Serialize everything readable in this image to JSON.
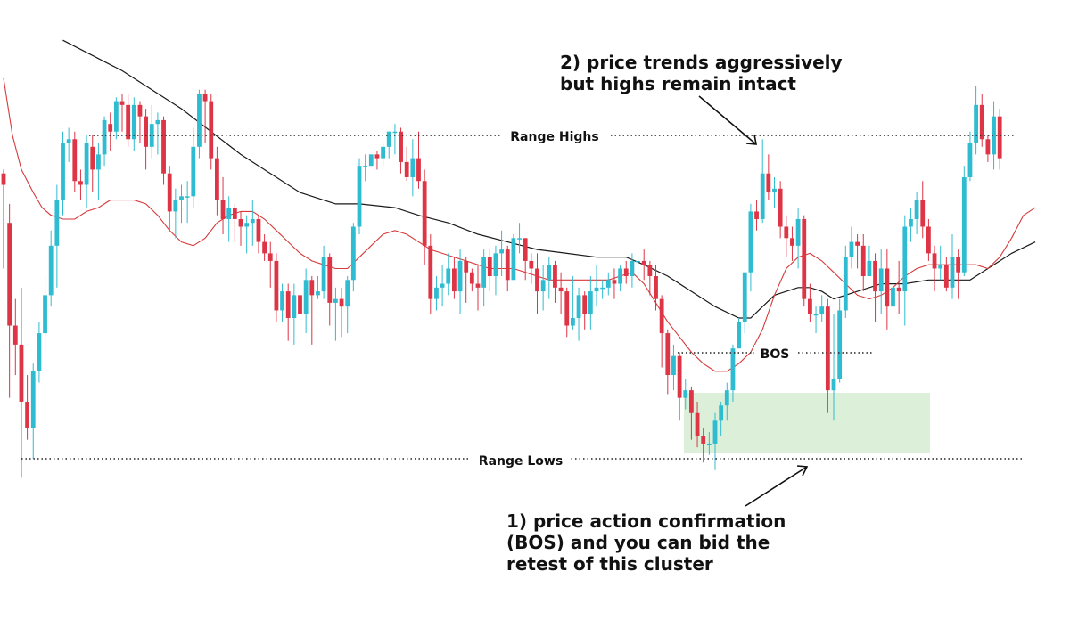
{
  "chart_data": {
    "type": "candlestick",
    "colors": {
      "up": "#2FBCD0",
      "down": "#DD3545",
      "ma_fast": "#D63A3A",
      "ma_slow": "#1A1A1A",
      "zone": "#DCEFD8",
      "grid": "none"
    },
    "ylim": [
      0,
      100
    ],
    "candles": [
      [
        75,
        72,
        76,
        50
      ],
      [
        62,
        35,
        67,
        16
      ],
      [
        35,
        30,
        42,
        22
      ],
      [
        30,
        15,
        45,
        -5
      ],
      [
        15,
        8,
        22,
        5
      ],
      [
        8,
        23,
        25,
        0
      ],
      [
        23,
        33,
        36,
        20
      ],
      [
        33,
        43,
        48,
        28
      ],
      [
        43,
        56,
        60,
        40
      ],
      [
        56,
        68,
        72,
        45
      ],
      [
        68,
        83,
        86,
        64
      ],
      [
        83,
        84,
        87,
        78
      ],
      [
        84,
        73,
        86,
        70
      ],
      [
        73,
        72,
        76,
        68
      ],
      [
        72,
        83,
        85,
        66
      ],
      [
        82,
        76,
        85,
        70
      ],
      [
        76,
        80,
        83,
        68
      ],
      [
        80,
        89,
        90,
        77
      ],
      [
        88,
        86,
        91,
        81
      ],
      [
        86,
        94,
        95,
        84
      ],
      [
        94,
        93,
        96,
        86
      ],
      [
        93,
        84,
        96,
        82
      ],
      [
        84,
        93,
        95,
        81
      ],
      [
        93,
        90,
        94,
        83
      ],
      [
        90,
        82,
        92,
        76
      ],
      [
        82,
        88,
        93,
        79
      ],
      [
        88,
        89,
        91,
        80
      ],
      [
        89,
        75,
        90,
        72
      ],
      [
        75,
        65,
        77,
        60
      ],
      [
        65,
        68,
        71,
        58
      ],
      [
        68,
        69,
        72,
        62
      ],
      [
        69,
        69,
        73,
        62
      ],
      [
        69,
        82,
        87,
        66
      ],
      [
        82,
        96,
        97,
        79
      ],
      [
        96,
        94,
        97,
        83
      ],
      [
        94,
        79,
        96,
        76
      ],
      [
        79,
        68,
        82,
        64
      ],
      [
        68,
        63,
        74,
        59
      ],
      [
        63,
        66,
        69,
        57
      ],
      [
        66,
        63,
        67,
        57
      ],
      [
        63,
        61,
        65,
        56
      ],
      [
        61,
        62,
        64,
        54
      ],
      [
        62,
        63,
        68,
        56
      ],
      [
        63,
        57,
        64,
        54
      ],
      [
        57,
        54,
        59,
        52
      ],
      [
        54,
        52,
        57,
        45
      ],
      [
        52,
        39,
        54,
        36
      ],
      [
        39,
        44,
        46,
        36
      ],
      [
        44,
        37,
        46,
        31
      ],
      [
        37,
        43,
        46,
        30
      ],
      [
        43,
        38,
        46,
        30
      ],
      [
        38,
        47,
        50,
        33
      ],
      [
        47,
        43,
        48,
        30
      ],
      [
        43,
        44,
        48,
        42
      ],
      [
        44,
        53,
        56,
        42
      ],
      [
        53,
        41,
        54,
        35
      ],
      [
        41,
        42,
        45,
        31
      ],
      [
        42,
        40,
        45,
        32
      ],
      [
        40,
        47,
        48,
        33
      ],
      [
        47,
        61,
        62,
        44
      ],
      [
        61,
        77,
        79,
        59
      ],
      [
        77,
        77,
        80,
        73
      ],
      [
        77,
        80,
        80,
        77
      ],
      [
        80,
        79,
        81,
        76
      ],
      [
        79,
        82,
        83,
        77
      ],
      [
        82,
        86,
        86,
        79
      ],
      [
        86,
        86,
        88,
        80
      ],
      [
        86,
        78,
        87,
        75
      ],
      [
        78,
        74,
        82,
        73
      ],
      [
        74,
        79,
        84,
        69
      ],
      [
        79,
        73,
        86,
        71
      ],
      [
        73,
        56,
        76,
        51
      ],
      [
        56,
        42,
        59,
        38
      ],
      [
        42,
        45,
        48,
        39
      ],
      [
        45,
        46,
        51,
        40
      ],
      [
        46,
        50,
        54,
        43
      ],
      [
        50,
        44,
        53,
        42
      ],
      [
        44,
        52,
        55,
        38
      ],
      [
        52,
        49,
        53,
        41
      ],
      [
        49,
        46,
        50,
        44
      ],
      [
        46,
        45,
        51,
        39
      ],
      [
        45,
        53,
        55,
        40
      ],
      [
        53,
        48,
        55,
        44
      ],
      [
        48,
        54,
        56,
        43
      ],
      [
        54,
        55,
        60,
        48
      ],
      [
        55,
        47,
        56,
        44
      ],
      [
        47,
        58,
        59,
        52
      ],
      [
        58,
        58,
        62,
        54
      ],
      [
        58,
        52,
        58,
        47
      ],
      [
        52,
        50,
        54,
        46
      ],
      [
        50,
        44,
        54,
        38
      ],
      [
        44,
        47,
        51,
        39
      ],
      [
        47,
        51,
        53,
        42
      ],
      [
        51,
        45,
        52,
        41
      ],
      [
        45,
        44,
        49,
        38
      ],
      [
        44,
        35,
        45,
        32
      ],
      [
        35,
        37,
        48,
        34
      ],
      [
        37,
        43,
        45,
        31
      ],
      [
        43,
        38,
        44,
        34
      ],
      [
        38,
        44,
        48,
        34
      ],
      [
        44,
        45,
        51,
        40
      ],
      [
        45,
        45,
        47,
        42
      ],
      [
        45,
        47,
        49,
        43
      ],
      [
        47,
        46,
        50,
        42
      ],
      [
        46,
        50,
        51,
        44
      ],
      [
        50,
        48,
        52,
        46
      ],
      [
        48,
        52,
        54,
        45
      ],
      [
        52,
        52,
        53,
        48
      ],
      [
        52,
        51,
        55,
        47
      ],
      [
        51,
        48,
        52,
        43
      ],
      [
        48,
        42,
        51,
        39
      ],
      [
        42,
        33,
        43,
        24
      ],
      [
        33,
        22,
        34,
        17
      ],
      [
        22,
        27,
        30,
        18
      ],
      [
        27,
        16,
        28,
        10
      ],
      [
        16,
        18,
        21,
        13
      ],
      [
        18,
        12,
        19,
        5
      ],
      [
        12,
        6,
        15,
        3
      ],
      [
        6,
        4,
        8,
        -1
      ],
      [
        4,
        4,
        7,
        1
      ],
      [
        4,
        10,
        12,
        -3
      ],
      [
        10,
        14,
        15,
        6
      ],
      [
        14,
        18,
        20,
        10
      ],
      [
        18,
        29,
        30,
        15
      ],
      [
        29,
        36,
        37,
        29
      ],
      [
        36,
        49,
        49,
        33
      ],
      [
        49,
        65,
        67,
        44
      ],
      [
        65,
        63,
        68,
        60
      ],
      [
        63,
        75,
        84,
        62
      ],
      [
        75,
        70,
        80,
        68
      ],
      [
        70,
        71,
        74,
        66
      ],
      [
        71,
        61,
        73,
        58
      ],
      [
        61,
        58,
        64,
        53
      ],
      [
        58,
        56,
        61,
        52
      ],
      [
        56,
        63,
        66,
        50
      ],
      [
        63,
        42,
        64,
        40
      ],
      [
        42,
        38,
        46,
        36
      ],
      [
        38,
        38,
        40,
        33
      ],
      [
        38,
        40,
        43,
        36
      ],
      [
        40,
        18,
        42,
        12
      ],
      [
        18,
        21,
        38,
        10
      ],
      [
        21,
        39,
        42,
        20
      ],
      [
        39,
        53,
        56,
        37
      ],
      [
        53,
        57,
        61,
        50
      ],
      [
        57,
        56,
        59,
        50
      ],
      [
        56,
        48,
        59,
        44
      ],
      [
        48,
        52,
        56,
        48
      ],
      [
        52,
        44,
        54,
        36
      ],
      [
        44,
        50,
        55,
        38
      ],
      [
        50,
        40,
        55,
        34
      ],
      [
        40,
        45,
        48,
        34
      ],
      [
        45,
        44,
        52,
        38
      ],
      [
        44,
        61,
        64,
        35
      ],
      [
        61,
        63,
        66,
        57
      ],
      [
        63,
        68,
        70,
        59
      ],
      [
        68,
        61,
        73,
        58
      ],
      [
        61,
        54,
        63,
        52
      ],
      [
        54,
        50,
        56,
        44
      ],
      [
        50,
        51,
        56,
        47
      ],
      [
        51,
        45,
        53,
        44
      ],
      [
        45,
        53,
        59,
        42
      ],
      [
        53,
        49,
        55,
        42
      ],
      [
        49,
        74,
        77,
        48
      ],
      [
        74,
        83,
        86,
        73
      ],
      [
        83,
        93,
        98,
        80
      ],
      [
        93,
        84,
        96,
        82
      ],
      [
        84,
        80,
        85,
        78
      ],
      [
        80,
        90,
        94,
        76
      ],
      [
        90,
        79,
        92,
        76
      ]
    ],
    "ma_fast": [
      [
        0,
        100
      ],
      [
        0.5,
        95
      ],
      [
        1.5,
        85
      ],
      [
        3,
        76
      ],
      [
        5,
        70
      ],
      [
        6.5,
        66
      ],
      [
        8,
        64
      ],
      [
        10,
        63
      ],
      [
        12,
        63
      ],
      [
        14,
        65
      ],
      [
        16,
        66
      ],
      [
        18,
        68
      ],
      [
        20,
        68
      ],
      [
        22,
        68
      ],
      [
        24,
        67
      ],
      [
        26,
        64
      ],
      [
        28,
        60
      ],
      [
        30,
        57
      ],
      [
        32,
        56
      ],
      [
        34,
        58
      ],
      [
        36,
        62
      ],
      [
        38,
        64
      ],
      [
        40,
        65
      ],
      [
        42,
        65
      ],
      [
        44,
        63
      ],
      [
        46,
        60
      ],
      [
        48,
        57
      ],
      [
        50,
        54
      ],
      [
        52,
        52
      ],
      [
        54,
        51
      ],
      [
        56,
        50
      ],
      [
        58,
        50
      ],
      [
        60,
        53
      ],
      [
        62,
        56
      ],
      [
        64,
        59
      ],
      [
        66,
        60
      ],
      [
        68,
        59
      ],
      [
        70,
        57
      ],
      [
        72,
        55
      ],
      [
        74,
        54
      ],
      [
        76,
        53
      ],
      [
        78,
        52
      ],
      [
        80,
        51
      ],
      [
        82,
        50
      ],
      [
        84,
        50
      ],
      [
        86,
        50
      ],
      [
        88,
        49
      ],
      [
        90,
        48
      ],
      [
        92,
        47
      ],
      [
        94,
        47
      ],
      [
        96,
        47
      ],
      [
        98,
        47
      ],
      [
        100,
        47
      ],
      [
        102,
        47
      ],
      [
        104,
        48
      ],
      [
        106,
        49
      ],
      [
        108,
        46
      ],
      [
        110,
        41
      ],
      [
        112,
        36
      ],
      [
        114,
        32
      ],
      [
        116,
        28
      ],
      [
        118,
        25
      ],
      [
        120,
        23
      ],
      [
        122,
        23
      ],
      [
        124,
        25
      ],
      [
        126,
        28
      ],
      [
        128,
        34
      ],
      [
        130,
        43
      ],
      [
        132,
        50
      ],
      [
        134,
        53
      ],
      [
        136,
        54
      ],
      [
        138,
        52
      ],
      [
        140,
        49
      ],
      [
        142,
        46
      ],
      [
        144,
        43
      ],
      [
        146,
        42
      ],
      [
        148,
        43
      ],
      [
        150,
        45
      ],
      [
        152,
        48
      ],
      [
        154,
        50
      ],
      [
        156,
        51
      ],
      [
        158,
        51
      ],
      [
        160,
        51
      ],
      [
        162,
        51
      ],
      [
        164,
        51
      ],
      [
        166,
        50
      ],
      [
        168,
        53
      ],
      [
        170,
        58
      ],
      [
        172,
        64
      ],
      [
        174,
        66
      ]
    ],
    "ma_slow": [
      [
        10,
        110
      ],
      [
        20,
        102
      ],
      [
        30,
        92
      ],
      [
        40,
        80
      ],
      [
        50,
        70
      ],
      [
        56,
        67
      ],
      [
        60,
        67
      ],
      [
        66,
        66
      ],
      [
        70,
        64
      ],
      [
        75,
        62
      ],
      [
        80,
        59
      ],
      [
        85,
        57
      ],
      [
        90,
        55
      ],
      [
        95,
        54
      ],
      [
        100,
        53
      ],
      [
        105,
        53
      ],
      [
        108,
        51
      ],
      [
        112,
        48
      ],
      [
        116,
        44
      ],
      [
        120,
        40
      ],
      [
        124,
        37
      ],
      [
        126,
        37
      ],
      [
        128,
        40
      ],
      [
        130,
        43
      ],
      [
        132,
        44
      ],
      [
        134,
        45
      ],
      [
        136,
        45
      ],
      [
        138,
        44
      ],
      [
        140,
        42
      ],
      [
        144,
        44
      ],
      [
        148,
        46
      ],
      [
        152,
        46
      ],
      [
        156,
        47
      ],
      [
        160,
        47
      ],
      [
        163,
        47
      ],
      [
        166,
        50
      ],
      [
        170,
        54
      ],
      [
        174,
        57
      ]
    ],
    "levels": [
      {
        "name": "Range Highs",
        "value": 85
      },
      {
        "name": "Range Lows",
        "value": 0
      },
      {
        "name": "BOS",
        "value": 38
      }
    ],
    "annotations": {
      "note1": "1) price action confirmation\n(BOS) and you can bid the\nretest of this cluster",
      "note2": "2) price trends aggressively\nbut highs remain intact"
    }
  }
}
